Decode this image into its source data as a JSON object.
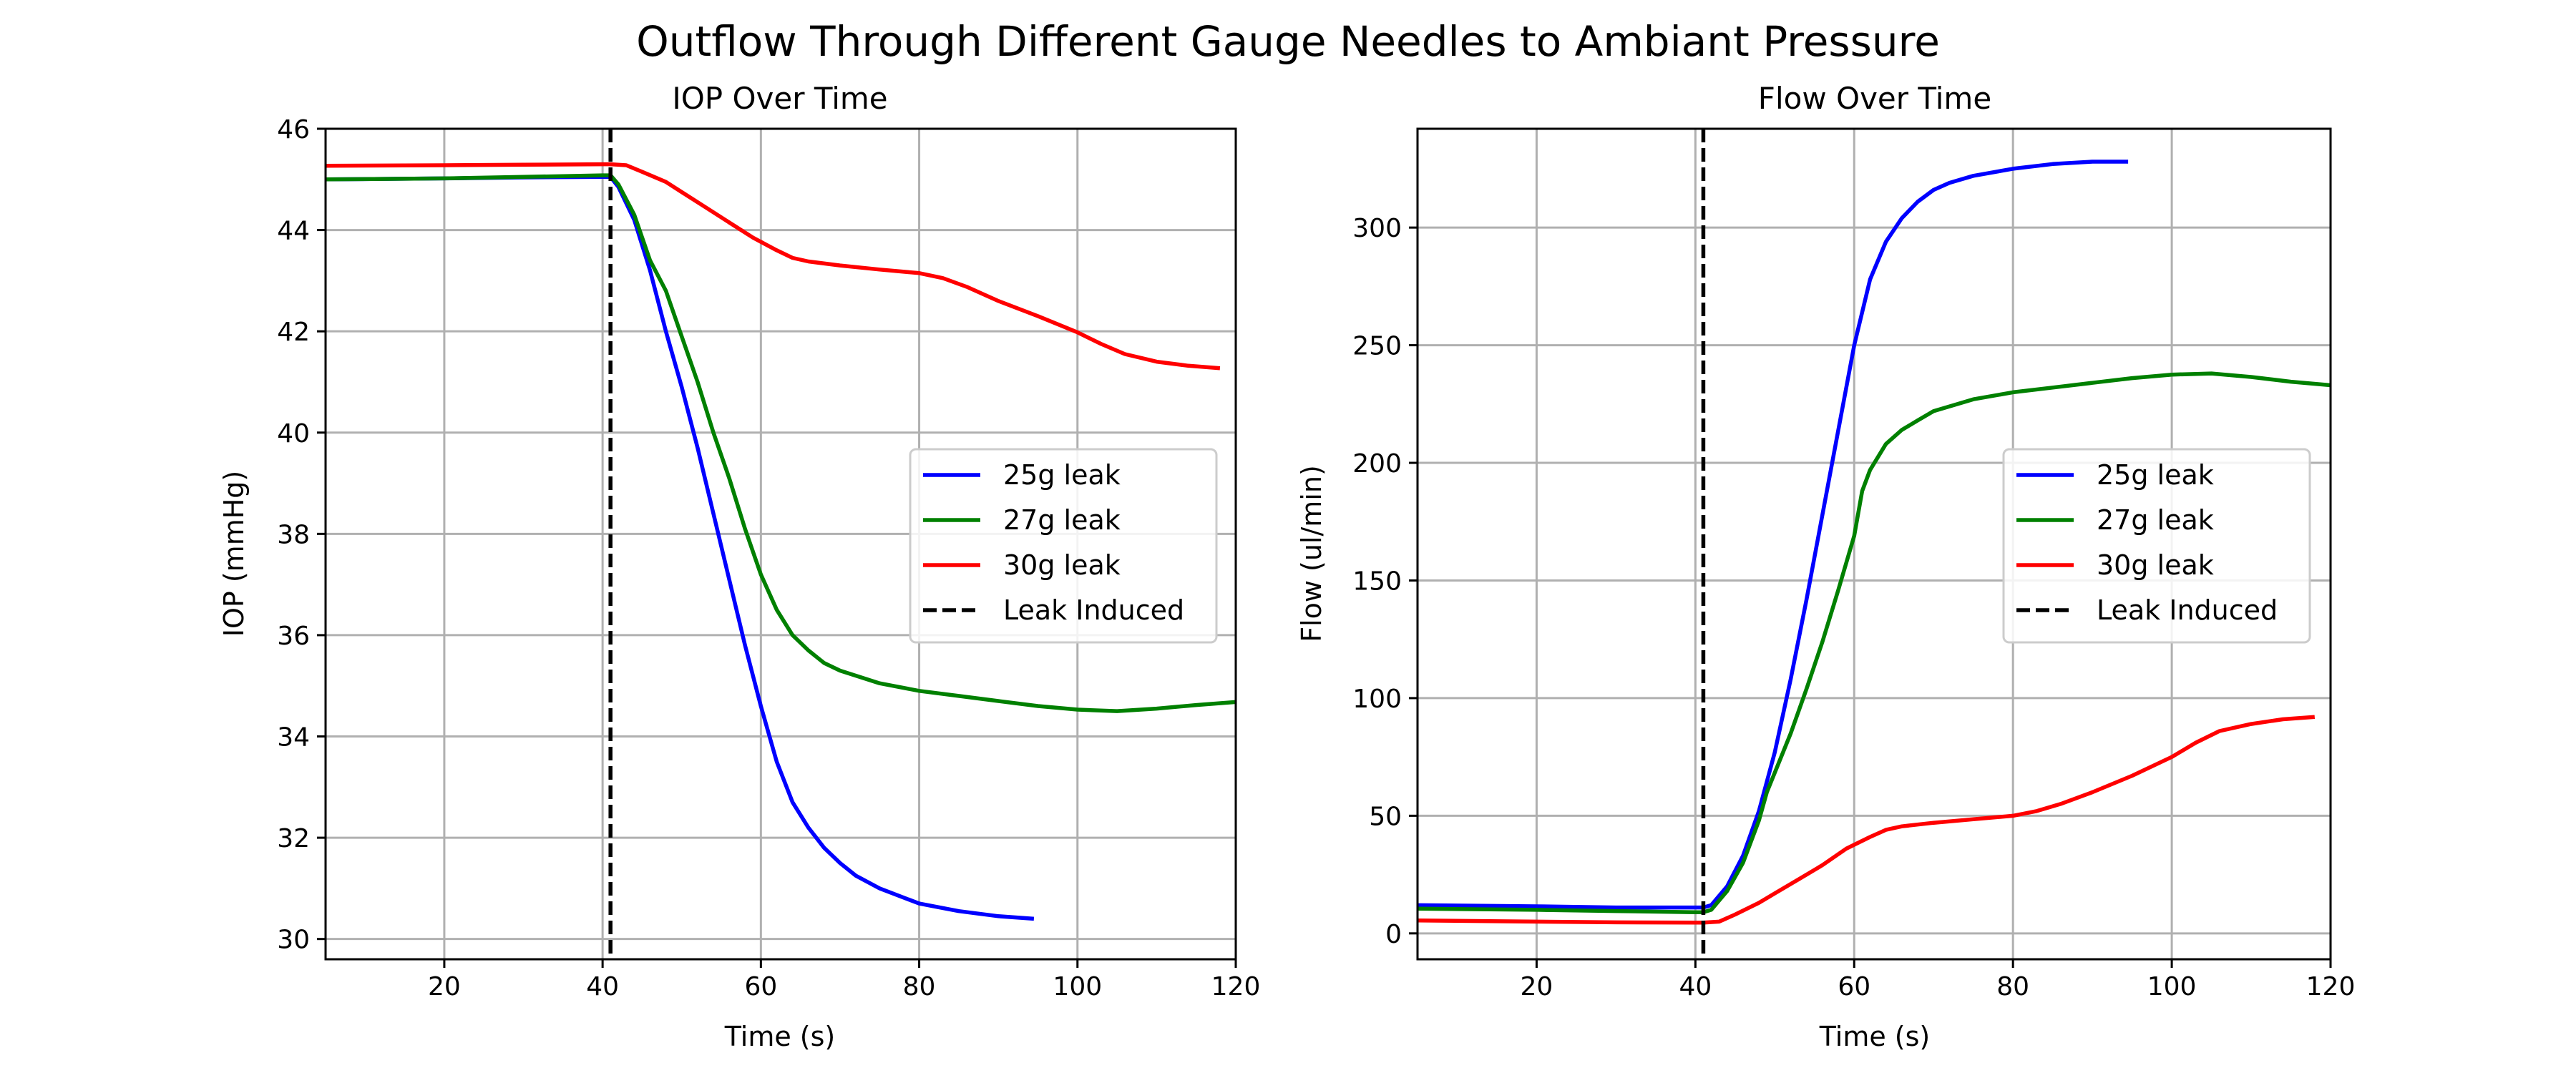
{
  "chart_data": {
    "suptitle": "Outflow Through Different Gauge Needles to Ambiant Pressure",
    "charts": [
      {
        "type": "line",
        "title": "IOP Over Time",
        "xlabel": "Time (s)",
        "ylabel": "IOP (mmHg)",
        "xlim": [
          5,
          120
        ],
        "ylim": [
          29.6,
          46
        ],
        "xticks": [
          20,
          40,
          60,
          80,
          100,
          120
        ],
        "yticks": [
          30,
          32,
          34,
          36,
          38,
          40,
          42,
          44,
          46
        ],
        "grid": true,
        "legend_position": "center-right",
        "vline": {
          "x": 41,
          "label": "Leak Induced"
        },
        "series": [
          {
            "name": "25g leak",
            "color": "#0000ff",
            "points": [
              [
                5,
                45.0
              ],
              [
                20,
                45.02
              ],
              [
                30,
                45.04
              ],
              [
                40,
                45.05
              ],
              [
                41,
                45.05
              ],
              [
                42,
                44.85
              ],
              [
                44,
                44.2
              ],
              [
                46,
                43.2
              ],
              [
                48,
                42.0
              ],
              [
                50,
                40.9
              ],
              [
                52,
                39.7
              ],
              [
                54,
                38.4
              ],
              [
                56,
                37.1
              ],
              [
                58,
                35.8
              ],
              [
                60,
                34.6
              ],
              [
                62,
                33.5
              ],
              [
                64,
                32.7
              ],
              [
                66,
                32.2
              ],
              [
                68,
                31.8
              ],
              [
                70,
                31.5
              ],
              [
                72,
                31.25
              ],
              [
                75,
                31.0
              ],
              [
                80,
                30.7
              ],
              [
                85,
                30.55
              ],
              [
                90,
                30.45
              ],
              [
                94.5,
                30.4
              ]
            ]
          },
          {
            "name": "27g leak",
            "color": "#008000",
            "points": [
              [
                5,
                45.0
              ],
              [
                20,
                45.02
              ],
              [
                30,
                45.05
              ],
              [
                40,
                45.08
              ],
              [
                41,
                45.08
              ],
              [
                42,
                44.9
              ],
              [
                44,
                44.3
              ],
              [
                46,
                43.4
              ],
              [
                48,
                42.8
              ],
              [
                50,
                41.9
              ],
              [
                52,
                41.0
              ],
              [
                54,
                40.0
              ],
              [
                56,
                39.1
              ],
              [
                58,
                38.1
              ],
              [
                60,
                37.2
              ],
              [
                62,
                36.5
              ],
              [
                64,
                36.0
              ],
              [
                66,
                35.7
              ],
              [
                68,
                35.45
              ],
              [
                70,
                35.3
              ],
              [
                75,
                35.05
              ],
              [
                80,
                34.9
              ],
              [
                85,
                34.8
              ],
              [
                90,
                34.7
              ],
              [
                95,
                34.6
              ],
              [
                100,
                34.53
              ],
              [
                105,
                34.5
              ],
              [
                110,
                34.55
              ],
              [
                115,
                34.62
              ],
              [
                120,
                34.68
              ]
            ]
          },
          {
            "name": "30g leak",
            "color": "#ff0000",
            "points": [
              [
                5,
                45.27
              ],
              [
                20,
                45.28
              ],
              [
                30,
                45.29
              ],
              [
                40,
                45.3
              ],
              [
                41,
                45.3
              ],
              [
                43,
                45.28
              ],
              [
                45,
                45.15
              ],
              [
                48,
                44.95
              ],
              [
                50,
                44.75
              ],
              [
                53,
                44.45
              ],
              [
                56,
                44.15
              ],
              [
                59,
                43.85
              ],
              [
                62,
                43.6
              ],
              [
                64,
                43.45
              ],
              [
                66,
                43.38
              ],
              [
                70,
                43.3
              ],
              [
                75,
                43.22
              ],
              [
                80,
                43.15
              ],
              [
                83,
                43.05
              ],
              [
                86,
                42.88
              ],
              [
                90,
                42.6
              ],
              [
                95,
                42.3
              ],
              [
                100,
                41.98
              ],
              [
                103,
                41.75
              ],
              [
                106,
                41.55
              ],
              [
                110,
                41.4
              ],
              [
                114,
                41.32
              ],
              [
                118,
                41.27
              ]
            ]
          }
        ]
      },
      {
        "type": "line",
        "title": "Flow Over Time",
        "xlabel": "Time (s)",
        "ylabel": "Flow (ul/min)",
        "xlim": [
          5,
          120
        ],
        "ylim": [
          -11,
          342
        ],
        "xticks": [
          20,
          40,
          60,
          80,
          100,
          120
        ],
        "yticks": [
          0,
          50,
          100,
          150,
          200,
          250,
          300
        ],
        "grid": true,
        "legend_position": "center-right",
        "vline": {
          "x": 41,
          "label": "Leak Induced"
        },
        "series": [
          {
            "name": "25g leak",
            "color": "#0000ff",
            "points": [
              [
                5,
                12
              ],
              [
                20,
                11.5
              ],
              [
                30,
                11
              ],
              [
                40,
                11
              ],
              [
                41,
                11
              ],
              [
                42,
                12
              ],
              [
                44,
                20
              ],
              [
                46,
                33
              ],
              [
                48,
                52
              ],
              [
                50,
                77
              ],
              [
                52,
                108
              ],
              [
                54,
                142
              ],
              [
                56,
                178
              ],
              [
                58,
                214
              ],
              [
                60,
                250
              ],
              [
                62,
                278
              ],
              [
                64,
                294
              ],
              [
                66,
                304
              ],
              [
                68,
                311
              ],
              [
                70,
                316
              ],
              [
                72,
                319
              ],
              [
                75,
                322
              ],
              [
                80,
                325
              ],
              [
                85,
                327
              ],
              [
                90,
                328
              ],
              [
                94.5,
                328
              ]
            ]
          },
          {
            "name": "27g leak",
            "color": "#008000",
            "points": [
              [
                5,
                10.5
              ],
              [
                20,
                10
              ],
              [
                30,
                9.5
              ],
              [
                40,
                9
              ],
              [
                41,
                9
              ],
              [
                42,
                10
              ],
              [
                44,
                18
              ],
              [
                46,
                30
              ],
              [
                48,
                48
              ],
              [
                49,
                60
              ],
              [
                52,
                85
              ],
              [
                54,
                104
              ],
              [
                56,
                124
              ],
              [
                58,
                146
              ],
              [
                60,
                169
              ],
              [
                61,
                188
              ],
              [
                62,
                197
              ],
              [
                64,
                208
              ],
              [
                66,
                214
              ],
              [
                68,
                218
              ],
              [
                70,
                222
              ],
              [
                75,
                227
              ],
              [
                80,
                230
              ],
              [
                85,
                232
              ],
              [
                90,
                234
              ],
              [
                95,
                236
              ],
              [
                100,
                237.5
              ],
              [
                105,
                238
              ],
              [
                110,
                236.5
              ],
              [
                115,
                234.5
              ],
              [
                120,
                233
              ]
            ]
          },
          {
            "name": "30g leak",
            "color": "#ff0000",
            "points": [
              [
                5,
                5.5
              ],
              [
                20,
                5
              ],
              [
                30,
                4.7
              ],
              [
                40,
                4.6
              ],
              [
                41,
                4.6
              ],
              [
                43,
                5
              ],
              [
                45,
                8
              ],
              [
                48,
                13
              ],
              [
                50,
                17
              ],
              [
                53,
                23
              ],
              [
                56,
                29
              ],
              [
                59,
                36
              ],
              [
                62,
                41
              ],
              [
                64,
                44
              ],
              [
                66,
                45.5
              ],
              [
                70,
                47
              ],
              [
                75,
                48.5
              ],
              [
                80,
                50
              ],
              [
                83,
                52
              ],
              [
                86,
                55
              ],
              [
                90,
                60
              ],
              [
                95,
                67
              ],
              [
                100,
                75
              ],
              [
                103,
                81
              ],
              [
                106,
                86
              ],
              [
                110,
                89
              ],
              [
                114,
                91
              ],
              [
                118,
                92
              ]
            ]
          }
        ]
      }
    ]
  }
}
